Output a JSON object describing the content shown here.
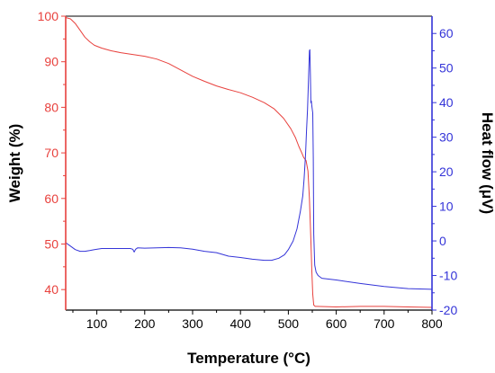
{
  "chart_data": {
    "type": "line",
    "xlabel": "Temperature (°C)",
    "xlim": [
      35,
      800
    ],
    "xticks": [
      100,
      200,
      300,
      400,
      500,
      600,
      700,
      800
    ],
    "y_left": {
      "label": "Weight (%)",
      "color": "#e8413d",
      "lim": [
        35.5,
        100
      ],
      "ticks": [
        40,
        50,
        60,
        70,
        80,
        90,
        100
      ]
    },
    "y_right": {
      "label": "Heat flow (μV)",
      "color": "#3434d8",
      "lim": [
        -20,
        65
      ],
      "ticks": [
        -20,
        -10,
        0,
        10,
        20,
        30,
        40,
        50,
        60
      ]
    },
    "grid": false,
    "legend": "none",
    "series": [
      {
        "axis": "left",
        "color": "#e8413d",
        "x": [
          35,
          45,
          55,
          65,
          75,
          85,
          95,
          110,
          130,
          150,
          175,
          200,
          225,
          250,
          275,
          300,
          325,
          350,
          375,
          400,
          425,
          450,
          470,
          490,
          505,
          515,
          522,
          528,
          532,
          537,
          541,
          544,
          547,
          549,
          551,
          553,
          556,
          560,
          600,
          650,
          700,
          750,
          800
        ],
        "y": [
          99.7,
          99.4,
          98.4,
          96.9,
          95.4,
          94.4,
          93.6,
          93.0,
          92.4,
          92.0,
          91.6,
          91.2,
          90.6,
          89.6,
          88.2,
          86.8,
          85.7,
          84.7,
          83.9,
          83.2,
          82.2,
          81.0,
          79.7,
          77.6,
          75.3,
          73.3,
          71.4,
          70.0,
          69.0,
          68.3,
          66.0,
          60.0,
          51.0,
          44.0,
          39.0,
          36.6,
          36.3,
          36.3,
          36.2,
          36.3,
          36.3,
          36.2,
          36.1
        ]
      },
      {
        "axis": "right",
        "color": "#3434d8",
        "x": [
          35,
          45,
          55,
          65,
          75,
          85,
          95,
          110,
          130,
          150,
          170,
          175,
          178,
          181,
          185,
          200,
          225,
          250,
          275,
          300,
          325,
          350,
          375,
          400,
          425,
          450,
          465,
          480,
          492,
          500,
          510,
          518,
          525,
          530,
          533,
          536,
          538,
          540,
          541,
          542,
          543,
          544,
          545,
          546,
          547,
          548,
          549,
          550,
          551,
          552,
          553,
          555,
          558,
          562,
          570,
          600,
          650,
          700,
          750,
          800
        ],
        "y": [
          -0.5,
          -1.5,
          -2.5,
          -3.0,
          -3.0,
          -2.8,
          -2.5,
          -2.2,
          -2.2,
          -2.2,
          -2.2,
          -2.4,
          -3.2,
          -2.4,
          -2.0,
          -2.1,
          -2.0,
          -1.9,
          -2.0,
          -2.4,
          -3.0,
          -3.4,
          -4.4,
          -4.8,
          -5.3,
          -5.6,
          -5.6,
          -5.0,
          -4.0,
          -2.5,
          0.0,
          3.5,
          8.5,
          13.0,
          18.0,
          25.0,
          32.0,
          38.0,
          42.0,
          46.0,
          51.0,
          55.0,
          55.3,
          48.0,
          40.0,
          40.5,
          39.0,
          38.0,
          37.0,
          24.0,
          2.0,
          -7.0,
          -9.0,
          -10.0,
          -10.8,
          -11.3,
          -12.3,
          -13.2,
          -13.8,
          -14.0
        ]
      }
    ]
  }
}
